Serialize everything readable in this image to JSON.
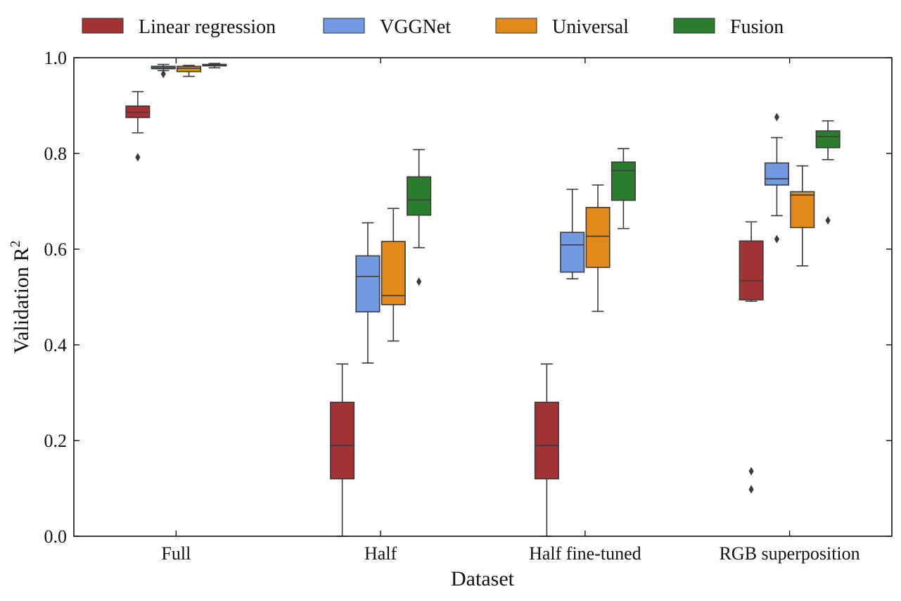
{
  "chart_data": {
    "type": "box",
    "xlabel": "Dataset",
    "ylabel_main": "Validation R",
    "ylabel_sup": "2",
    "ylim": [
      0.0,
      1.0
    ],
    "yticks": [
      "0.0",
      "0.2",
      "0.4",
      "0.6",
      "0.8",
      "1.0"
    ],
    "yticks_values": [
      0.0,
      0.2,
      0.4,
      0.6,
      0.8,
      1.0
    ],
    "categories": [
      "Full",
      "Half",
      "Half fine-tuned",
      "RGB superposition"
    ],
    "legend_position": "top",
    "series": [
      {
        "name": "Linear regression",
        "color": "#a33235",
        "boxes": [
          {
            "whislo": 0.843,
            "q1": 0.875,
            "med": 0.886,
            "q3": 0.899,
            "whishi": 0.929,
            "fliers": [
              0.792
            ]
          },
          {
            "whislo": 0.0,
            "q1": 0.12,
            "med": 0.19,
            "q3": 0.28,
            "whishi": 0.36,
            "fliers": []
          },
          {
            "whislo": 0.0,
            "q1": 0.12,
            "med": 0.19,
            "q3": 0.28,
            "whishi": 0.36,
            "fliers": []
          },
          {
            "whislo": 0.491,
            "q1": 0.494,
            "med": 0.534,
            "q3": 0.617,
            "whishi": 0.657,
            "fliers": [
              0.136,
              0.098
            ]
          }
        ]
      },
      {
        "name": "VGGNet",
        "color": "#719ae0",
        "boxes": [
          {
            "whislo": 0.973,
            "q1": 0.977,
            "med": 0.979,
            "q3": 0.982,
            "whishi": 0.986,
            "fliers": [
              0.966
            ]
          },
          {
            "whislo": 0.362,
            "q1": 0.469,
            "med": 0.543,
            "q3": 0.586,
            "whishi": 0.655,
            "fliers": []
          },
          {
            "whislo": 0.538,
            "q1": 0.552,
            "med": 0.609,
            "q3": 0.635,
            "whishi": 0.725,
            "fliers": []
          },
          {
            "whislo": 0.67,
            "q1": 0.734,
            "med": 0.747,
            "q3": 0.78,
            "whishi": 0.833,
            "fliers": [
              0.876,
              0.621
            ]
          }
        ]
      },
      {
        "name": "Universal",
        "color": "#e2891c",
        "boxes": [
          {
            "whislo": 0.961,
            "q1": 0.971,
            "med": 0.978,
            "q3": 0.982,
            "whishi": 0.984,
            "fliers": []
          },
          {
            "whislo": 0.408,
            "q1": 0.484,
            "med": 0.503,
            "q3": 0.616,
            "whishi": 0.685,
            "fliers": []
          },
          {
            "whislo": 0.47,
            "q1": 0.562,
            "med": 0.627,
            "q3": 0.687,
            "whishi": 0.734,
            "fliers": []
          },
          {
            "whislo": 0.565,
            "q1": 0.645,
            "med": 0.713,
            "q3": 0.72,
            "whishi": 0.774,
            "fliers": []
          }
        ]
      },
      {
        "name": "Fusion",
        "color": "#2d7c2c",
        "boxes": [
          {
            "whislo": 0.979,
            "q1": 0.983,
            "med": 0.985,
            "q3": 0.986,
            "whishi": 0.988,
            "fliers": []
          },
          {
            "whislo": 0.603,
            "q1": 0.671,
            "med": 0.703,
            "q3": 0.751,
            "whishi": 0.808,
            "fliers": [
              0.532
            ]
          },
          {
            "whislo": 0.643,
            "q1": 0.702,
            "med": 0.764,
            "q3": 0.782,
            "whishi": 0.81,
            "fliers": []
          },
          {
            "whislo": 0.787,
            "q1": 0.812,
            "med": 0.835,
            "q3": 0.847,
            "whishi": 0.868,
            "fliers": [
              0.66
            ]
          }
        ]
      }
    ]
  }
}
